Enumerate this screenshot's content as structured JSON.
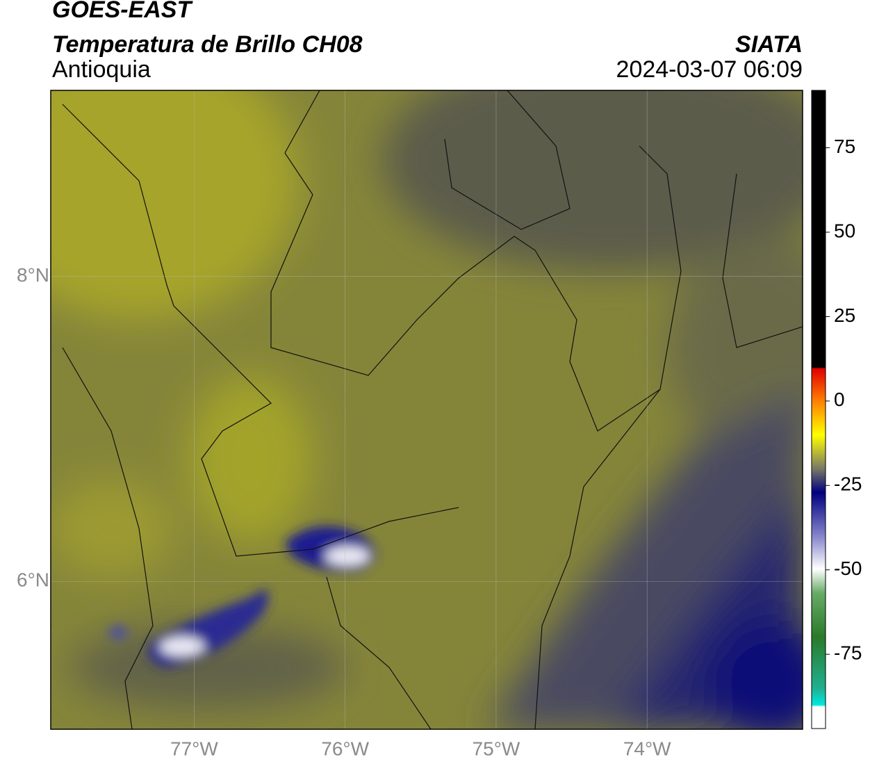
{
  "header": {
    "satellite": "GOES-EAST",
    "product": "Temperatura de Brillo CH08",
    "region": "Antioquia",
    "source": "SIATA",
    "datetime": "2024-03-07 06:09"
  },
  "map": {
    "xlim": [
      -77.95,
      -72.97
    ],
    "ylim": [
      5.03,
      9.22
    ],
    "xticks": [
      {
        "value": -77,
        "label": "77°W"
      },
      {
        "value": -76,
        "label": "76°W"
      },
      {
        "value": -75,
        "label": "75°W"
      },
      {
        "value": -74,
        "label": "74°W"
      }
    ],
    "yticks": [
      {
        "value": 8,
        "label": "8°N"
      },
      {
        "value": 6,
        "label": "6°N"
      }
    ]
  },
  "colorbar": {
    "lim": [
      -97,
      92
    ],
    "ticks": [
      75,
      50,
      25,
      0,
      -25,
      -50,
      -75
    ]
  }
}
